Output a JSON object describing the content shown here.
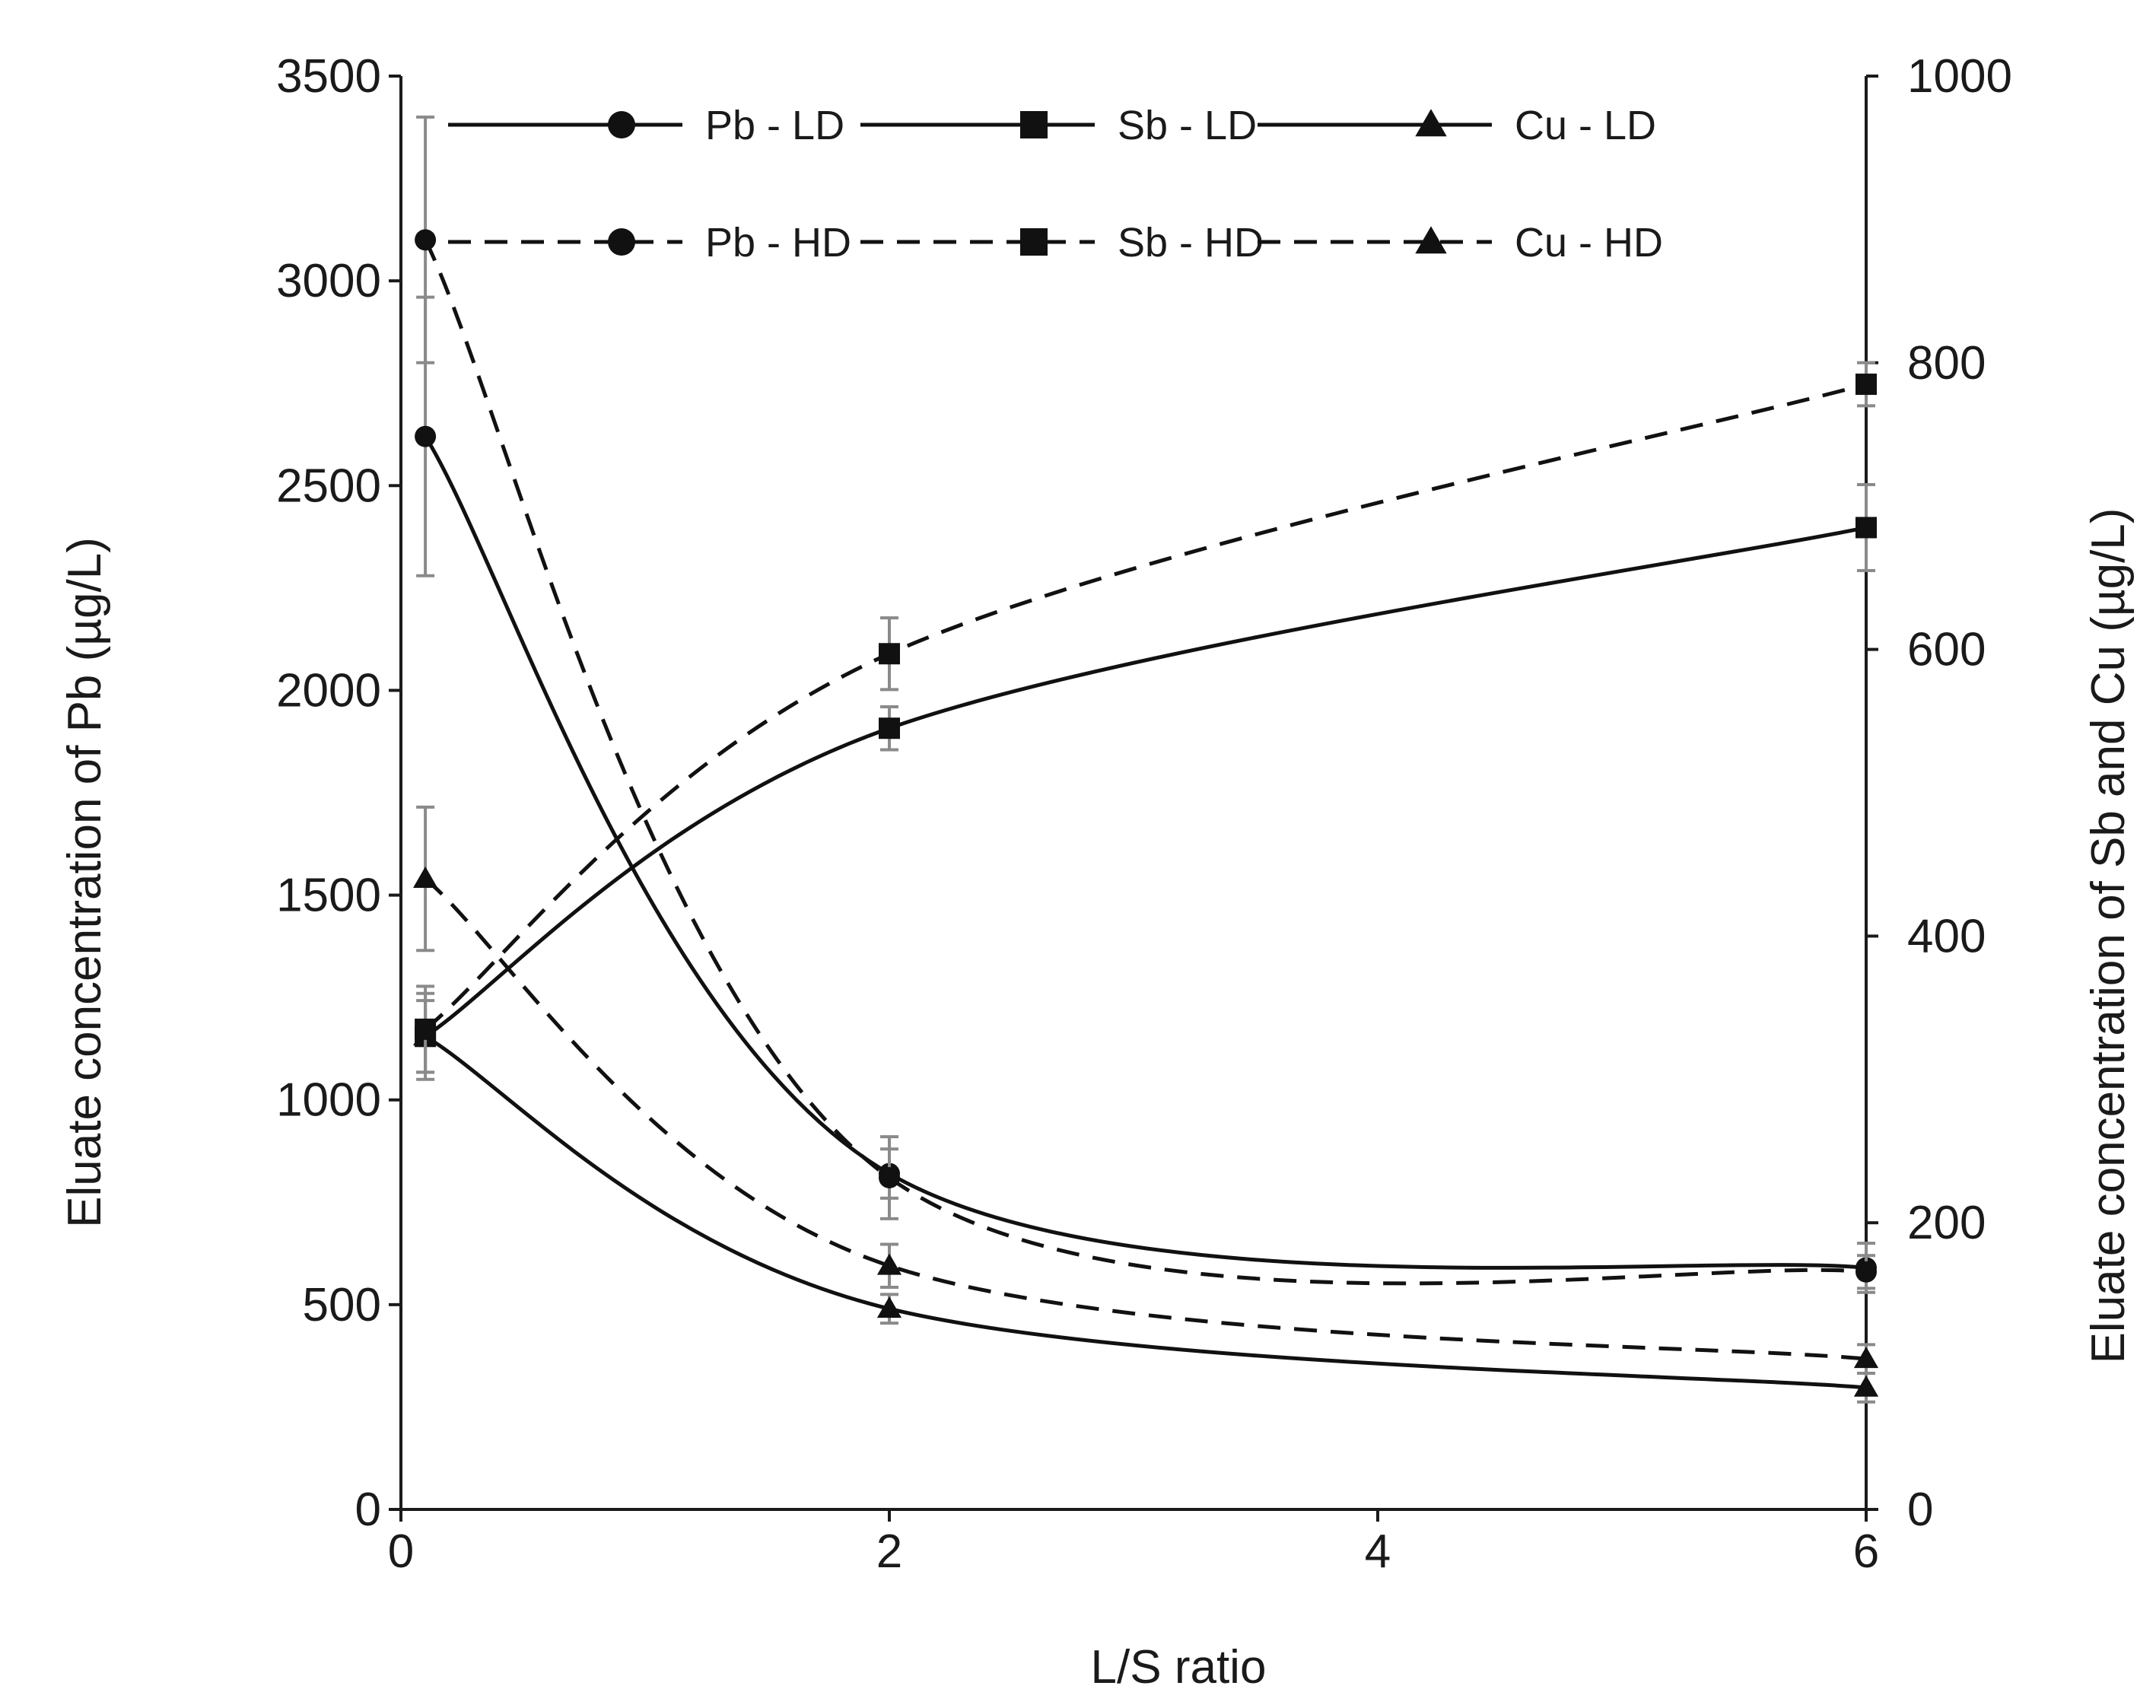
{
  "chart_data": {
    "type": "line",
    "xlabel": "L/S ratio",
    "ylabel_left": "Eluate concentration of Pb (µg/L)",
    "ylabel_right": "Eluate concentration of Sb and Cu (µg/L)",
    "xlim": [
      0,
      6
    ],
    "ylim_left": [
      0,
      3500
    ],
    "ylim_right": [
      0,
      1000
    ],
    "x_ticks": [
      "0",
      "2",
      "4",
      "6"
    ],
    "y_ticks_left": [
      "0",
      "500",
      "1000",
      "1500",
      "2000",
      "2500",
      "3000",
      "3500"
    ],
    "y_ticks_right": [
      "0",
      "200",
      "400",
      "600",
      "800",
      "1000"
    ],
    "grid": false,
    "legend_position": "top",
    "series": [
      {
        "name": "Pb - LD",
        "axis": "left",
        "marker": "circle",
        "dash": "solid",
        "x": [
          0.1,
          2,
          6
        ],
        "values": [
          2620,
          820,
          590
        ],
        "error": [
          340,
          60,
          60
        ]
      },
      {
        "name": "Sb - LD",
        "axis": "right",
        "marker": "square",
        "dash": "solid",
        "x": [
          0.1,
          2,
          6
        ],
        "values": [
          330,
          545,
          685
        ],
        "error": [
          25,
          15,
          30
        ]
      },
      {
        "name": "Cu - LD",
        "axis": "right",
        "marker": "triangle",
        "dash": "solid",
        "x": [
          0.1,
          2,
          6
        ],
        "values": [
          330,
          140,
          85
        ],
        "error": [
          30,
          10,
          10
        ]
      },
      {
        "name": "Pb - HD",
        "axis": "left",
        "marker": "circle",
        "dash": "dashed",
        "x": [
          0.1,
          2,
          6
        ],
        "values": [
          3100,
          810,
          580
        ],
        "error": [
          300,
          100,
          40
        ]
      },
      {
        "name": "Sb - HD",
        "axis": "right",
        "marker": "square",
        "dash": "dashed",
        "x": [
          0.1,
          2,
          6
        ],
        "values": [
          335,
          597,
          785
        ],
        "error": [
          30,
          25,
          15
        ]
      },
      {
        "name": "Cu - HD",
        "axis": "right",
        "marker": "triangle",
        "dash": "dashed",
        "x": [
          0.1,
          2,
          6
        ],
        "values": [
          440,
          170,
          105
        ],
        "error": [
          50,
          15,
          10
        ]
      }
    ]
  }
}
